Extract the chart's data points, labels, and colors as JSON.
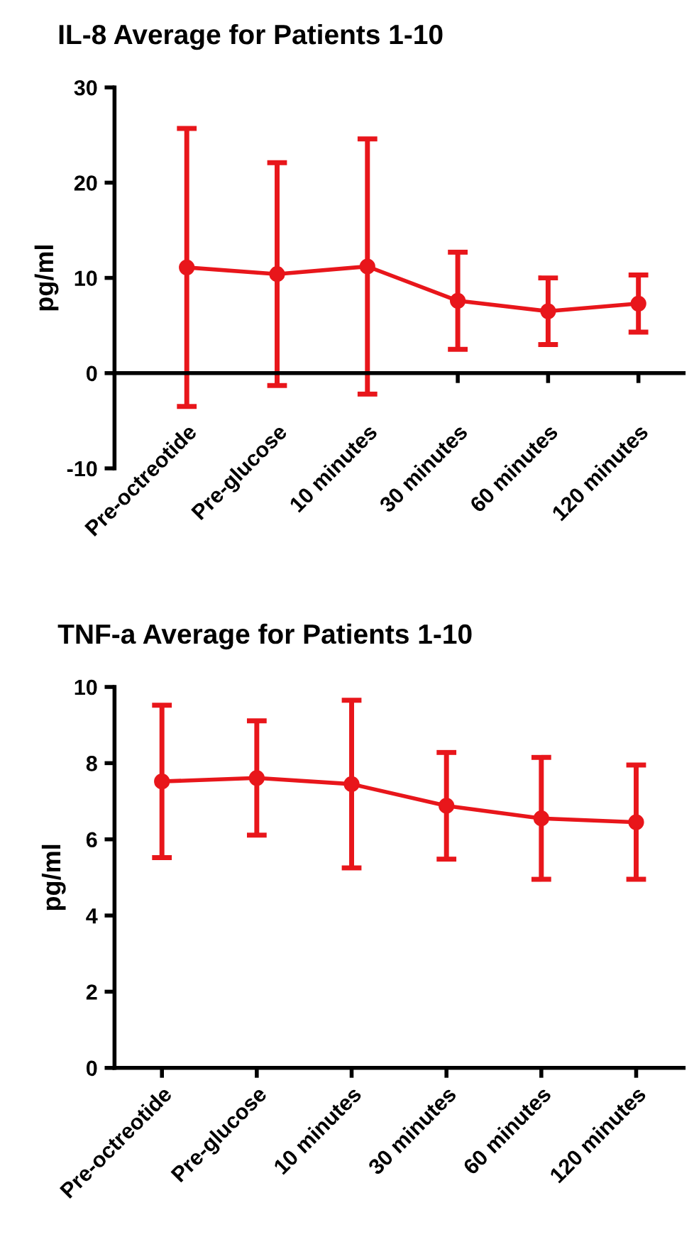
{
  "chart_data": [
    {
      "type": "line",
      "title": "IL-8 Average for Patients 1-10",
      "ylabel": "pg/ml",
      "categories": [
        "Pre-octreotide",
        "Pre-glucose",
        "10 minutes",
        "30 minutes",
        "60 minutes",
        "120 minutes"
      ],
      "series": [
        {
          "color": "#e8161b",
          "values": [
            11.1,
            10.4,
            11.2,
            7.6,
            6.5,
            7.3
          ],
          "errors": [
            14.6,
            11.7,
            13.4,
            5.1,
            3.5,
            3.0
          ]
        }
      ],
      "ylim": [
        -10,
        30
      ],
      "yticks": [
        -10,
        0,
        10,
        20,
        30
      ],
      "marker": "circle",
      "grid": false
    },
    {
      "type": "line",
      "title": "TNF-a Average for Patients 1-10",
      "ylabel": "pg/ml",
      "categories": [
        "Pre-octreotide",
        "Pre-glucose",
        "10 minutes",
        "30 minutes",
        "60 minutes",
        "120 minutes"
      ],
      "series": [
        {
          "color": "#e8161b",
          "values": [
            7.52,
            7.61,
            7.45,
            6.88,
            6.55,
            6.45
          ],
          "errors": [
            2.0,
            1.5,
            2.2,
            1.4,
            1.6,
            1.5
          ]
        }
      ],
      "ylim": [
        0,
        10
      ],
      "yticks": [
        0,
        2,
        4,
        6,
        8,
        10
      ],
      "marker": "circle",
      "grid": false
    }
  ]
}
